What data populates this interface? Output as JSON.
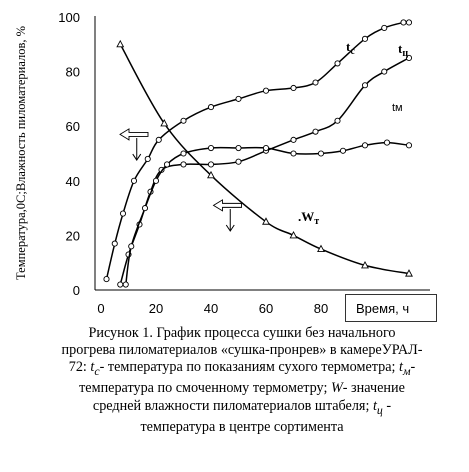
{
  "chart_data": {
    "type": "line",
    "ylabel": "Температура,0С;Влажность пиломатериалов, %",
    "xlabel": "Время, ч",
    "xlim": [
      0,
      130
    ],
    "ylim": [
      0,
      100
    ],
    "x_ticks": [
      "0",
      "20",
      "40",
      "60",
      "80"
    ],
    "y_ticks": [
      "0",
      "20",
      "40",
      "60",
      "80",
      "100"
    ],
    "grid": false,
    "series": [
      {
        "name": "tc",
        "label_main": "t",
        "label_sub": "c",
        "marker": "circle",
        "points": [
          [
            2,
            4
          ],
          [
            5,
            17
          ],
          [
            8,
            28
          ],
          [
            12,
            40
          ],
          [
            17,
            48
          ],
          [
            21,
            55
          ],
          [
            30,
            62
          ],
          [
            40,
            67
          ],
          [
            50,
            70
          ],
          [
            60,
            73
          ],
          [
            70,
            74
          ],
          [
            78,
            76
          ],
          [
            86,
            83
          ],
          [
            96,
            92
          ],
          [
            103,
            96
          ],
          [
            110,
            98
          ],
          [
            112,
            98
          ]
        ]
      },
      {
        "name": "tц",
        "label_main": "t",
        "label_sub": "ц",
        "marker": "circle",
        "points": [
          [
            7,
            2
          ],
          [
            10,
            13
          ],
          [
            14,
            24
          ],
          [
            18,
            36
          ],
          [
            22,
            44
          ],
          [
            30,
            46
          ],
          [
            40,
            46
          ],
          [
            50,
            47
          ],
          [
            60,
            51
          ],
          [
            70,
            55
          ],
          [
            78,
            58
          ],
          [
            86,
            62
          ],
          [
            96,
            75
          ],
          [
            103,
            80
          ],
          [
            112,
            85
          ]
        ]
      },
      {
        "name": "tм",
        "label_main": "tм",
        "marker": "circle",
        "points": [
          [
            9,
            2
          ],
          [
            11,
            16
          ],
          [
            16,
            30
          ],
          [
            20,
            40
          ],
          [
            24,
            46
          ],
          [
            30,
            50
          ],
          [
            40,
            52
          ],
          [
            50,
            52
          ],
          [
            60,
            52
          ],
          [
            70,
            50
          ],
          [
            80,
            50
          ],
          [
            88,
            51
          ],
          [
            96,
            53
          ],
          [
            104,
            54
          ],
          [
            112,
            53
          ]
        ]
      },
      {
        "name": "Wт",
        "label_main": "W",
        "label_sub": "т",
        "marker": "triangle",
        "points": [
          [
            7,
            90
          ],
          [
            23,
            61
          ],
          [
            40,
            42
          ],
          [
            60,
            25
          ],
          [
            70,
            20
          ],
          [
            80,
            15
          ],
          [
            96,
            9
          ],
          [
            112,
            6
          ]
        ]
      }
    ],
    "arrows": [
      {
        "direction": "left",
        "at": [
          12,
          57
        ]
      },
      {
        "direction": "down",
        "at": [
          13,
          52
        ]
      },
      {
        "direction": "left",
        "at": [
          46,
          31
        ]
      },
      {
        "direction": "down",
        "at": [
          47,
          26
        ]
      }
    ]
  },
  "caption": {
    "line1": "Рисунок  1. График процесса сушки  без начального",
    "line2": "прогрева пиломатериалов «сушка-пронрев»  в камереУРАЛ-",
    "line3_a": "72:  ",
    "line3_tc": "t",
    "line3_tc_sub": "c",
    "line3_b": "- температура по показаниям сухого   термометра; ",
    "line3_tm": "t",
    "line3_tm_sub": "м",
    "line3_c": "-",
    "line4": "температура по смоченному термометру;  ",
    "line4_w": "W",
    "line4_b": "- значение",
    "line5": "средней влажности пиломатериалов штабеля;   ",
    "line5_t": "t",
    "line5_t_sub": "ц",
    "line5_b": " -",
    "line6": "температура в центре сортимента"
  }
}
